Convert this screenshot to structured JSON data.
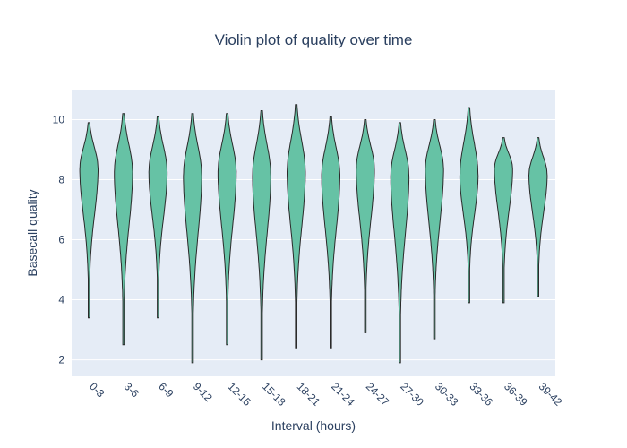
{
  "chart_data": {
    "type": "violin",
    "title": "Violin plot of quality over time",
    "xlabel": "Interval (hours)",
    "ylabel": "Basecall quality",
    "ylim": [
      1.45,
      11.0
    ],
    "yticks": [
      2,
      4,
      6,
      8,
      10
    ],
    "grid": true,
    "colors": {
      "fill": "#66c2a5",
      "outline": "#2a2a2a",
      "plot_bg": "#e5ecf6",
      "grid": "#ffffff",
      "text": "#2a3f5f"
    },
    "categories": [
      "0-3",
      "3-6",
      "6-9",
      "9-12",
      "12-15",
      "15-18",
      "18-21",
      "21-24",
      "24-27",
      "27-30",
      "30-33",
      "33-36",
      "36-39",
      "39-42"
    ],
    "series": [
      {
        "values": [
          {
            "min": 3.4,
            "max": 9.9,
            "median": 8.4
          },
          {
            "min": 2.5,
            "max": 10.2,
            "median": 8.3
          },
          {
            "min": 3.4,
            "max": 10.1,
            "median": 8.3
          },
          {
            "min": 1.9,
            "max": 10.2,
            "median": 8.2
          },
          {
            "min": 2.5,
            "max": 10.2,
            "median": 8.3
          },
          {
            "min": 2.0,
            "max": 10.3,
            "median": 8.2
          },
          {
            "min": 2.4,
            "max": 10.5,
            "median": 8.3
          },
          {
            "min": 2.4,
            "max": 10.1,
            "median": 8.2
          },
          {
            "min": 2.9,
            "max": 10.0,
            "median": 8.4
          },
          {
            "min": 1.9,
            "max": 9.9,
            "median": 8.2
          },
          {
            "min": 2.7,
            "max": 10.0,
            "median": 8.4
          },
          {
            "min": 3.9,
            "max": 10.4,
            "median": 8.2
          },
          {
            "min": 3.9,
            "max": 9.4,
            "median": 8.4
          },
          {
            "min": 4.1,
            "max": 9.4,
            "median": 8.2
          }
        ]
      }
    ]
  }
}
